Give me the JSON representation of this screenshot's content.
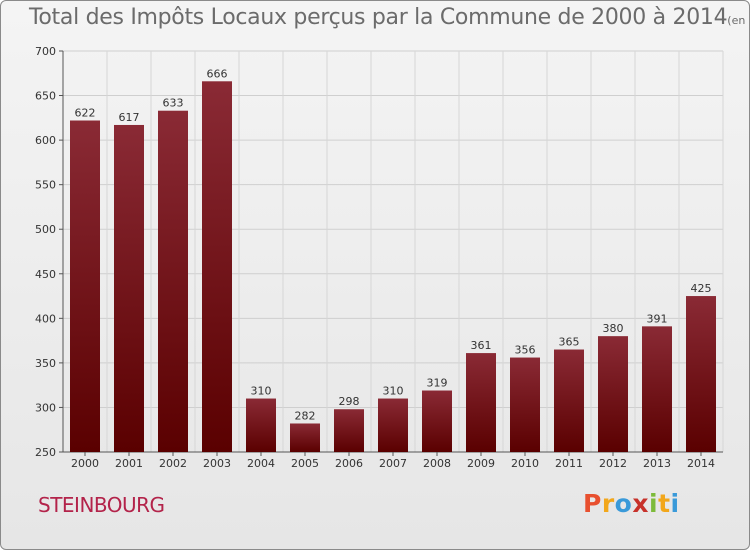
{
  "header": {
    "title": "Total des Impôts Locaux perçus par la Commune de 2000 à 2014",
    "unit": "(en milliers d'€)"
  },
  "footer": {
    "commune": "STEINBOURG",
    "logo": [
      "P",
      "r",
      "o",
      "x",
      "i",
      "t",
      "i"
    ],
    "logo_colors": [
      "#e8502f",
      "#f2a71b",
      "#3a9ad9",
      "#c7322b",
      "#7dbb3a",
      "#f2a71b",
      "#3a9ad9"
    ]
  },
  "chart_data": {
    "type": "bar",
    "categories": [
      "2000",
      "2001",
      "2002",
      "2003",
      "2004",
      "2005",
      "2006",
      "2007",
      "2008",
      "2009",
      "2010",
      "2011",
      "2012",
      "2013",
      "2014"
    ],
    "values": [
      622,
      617,
      633,
      666,
      310,
      282,
      298,
      310,
      319,
      361,
      356,
      365,
      380,
      391,
      425
    ],
    "ylim": [
      250,
      700
    ],
    "yticks": [
      250,
      300,
      350,
      400,
      450,
      500,
      550,
      600,
      650,
      700
    ],
    "grid": true,
    "bar_color_top": "#8a2a35",
    "bar_color_bottom": "#5a0000"
  }
}
